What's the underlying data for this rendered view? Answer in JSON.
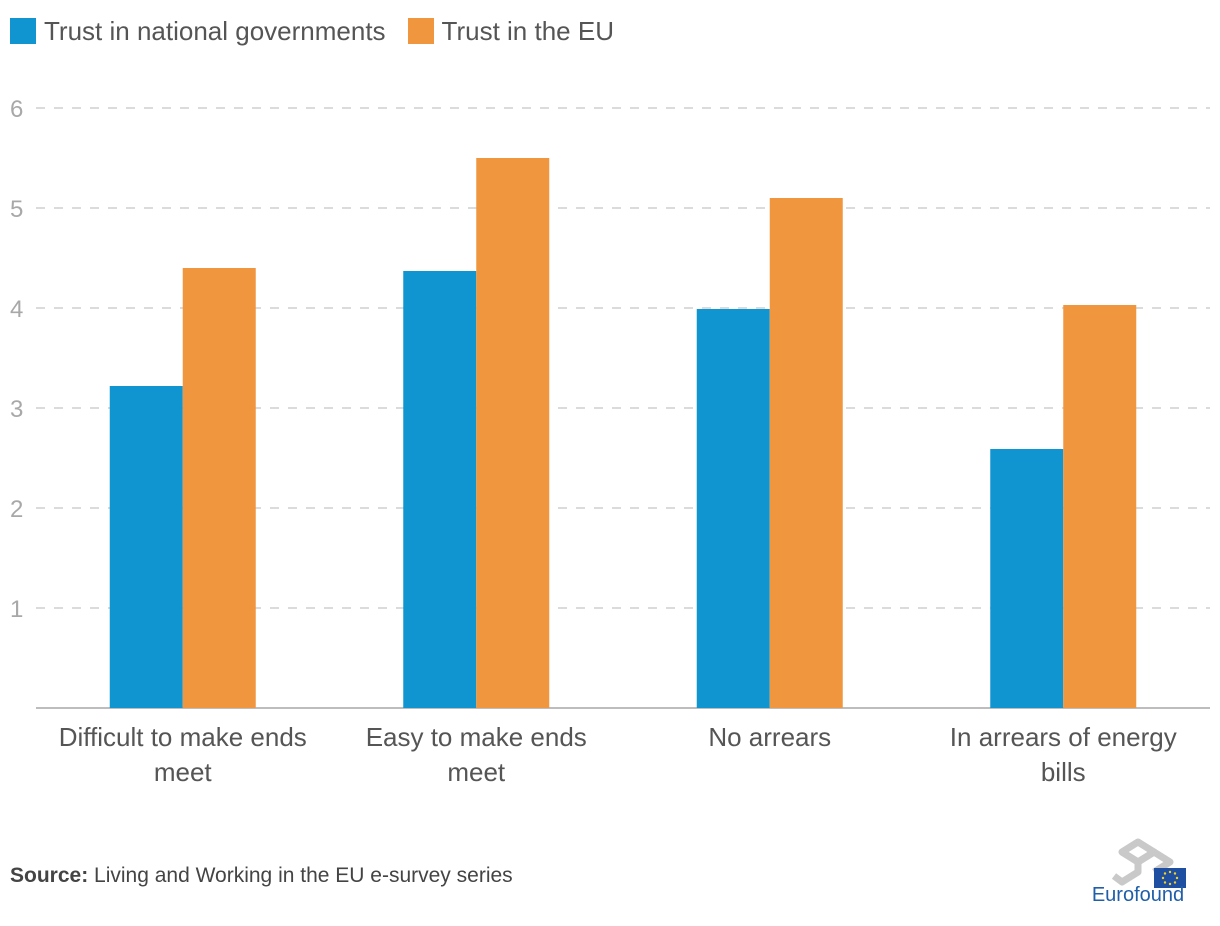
{
  "legend": [
    {
      "label": "Trust in national governments",
      "color": "#1195d0"
    },
    {
      "label": "Trust in the EU",
      "color": "#f0963f"
    }
  ],
  "chart_data": {
    "type": "bar",
    "categories": [
      [
        "Difficult to make ends",
        "meet"
      ],
      [
        "Easy to make ends",
        "meet"
      ],
      [
        "No arrears"
      ],
      [
        "In arrears of energy",
        "bills"
      ]
    ],
    "series": [
      {
        "name": "Trust in national governments",
        "color": "#1195d0",
        "values": [
          3.22,
          4.37,
          3.99,
          2.59
        ]
      },
      {
        "name": "Trust in the EU",
        "color": "#f0963f",
        "values": [
          4.4,
          5.5,
          5.1,
          4.03
        ]
      }
    ],
    "ylim": [
      0,
      6
    ],
    "yticks": [
      "1",
      "2",
      "3",
      "4",
      "5",
      "6"
    ],
    "grid": true,
    "legend_position": "top-left"
  },
  "source": {
    "label": "Source:",
    "text": " Living and Working in the EU e-survey series"
  },
  "logo": {
    "text": "Eurofound"
  }
}
